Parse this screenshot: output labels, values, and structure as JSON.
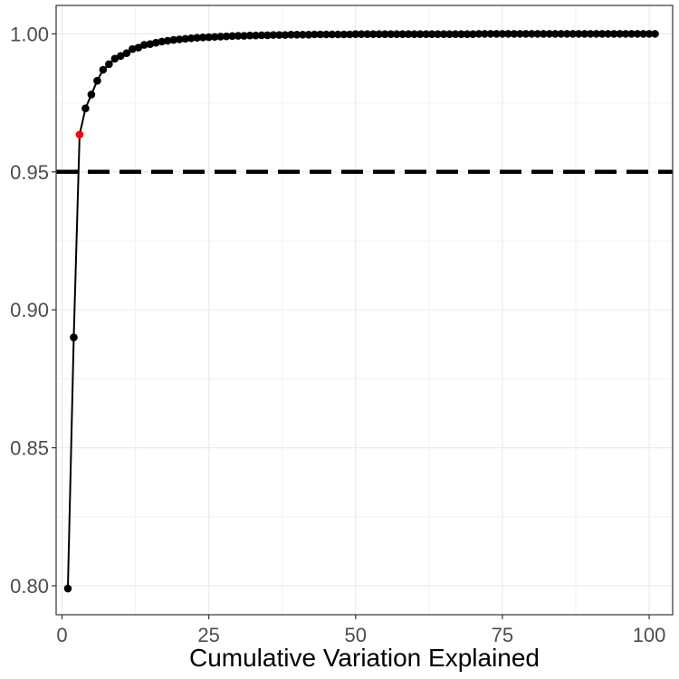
{
  "chart_data": {
    "type": "line",
    "title": "",
    "xlabel": "Cumulative Variation Explained",
    "ylabel": "",
    "xlim": [
      -1,
      104
    ],
    "ylim": [
      0.7895,
      1.0103
    ],
    "x_ticks": [
      0,
      25,
      50,
      75,
      100
    ],
    "x_tick_labels": [
      "0",
      "25",
      "50",
      "75",
      "100"
    ],
    "y_ticks": [
      0.8,
      0.85,
      0.9,
      0.95,
      1.0
    ],
    "y_tick_labels": [
      "0.80",
      "0.85",
      "0.90",
      "0.95",
      "1.00"
    ],
    "grid": true,
    "reference_line": {
      "y": 0.95,
      "style": "dashed",
      "color": "#000000"
    },
    "highlight": {
      "x": 3,
      "y": 0.9635,
      "color": "#ff0000"
    },
    "series": [
      {
        "color": "#000000",
        "x": [
          1,
          2,
          3,
          4,
          5,
          6,
          7,
          8,
          9,
          10,
          11,
          12,
          13,
          14,
          15,
          16,
          17,
          18,
          19,
          20,
          21,
          22,
          23,
          24,
          25,
          26,
          27,
          28,
          29,
          30,
          31,
          32,
          33,
          34,
          35,
          36,
          37,
          38,
          39,
          40,
          41,
          42,
          43,
          44,
          45,
          46,
          47,
          48,
          49,
          50,
          51,
          52,
          53,
          54,
          55,
          56,
          57,
          58,
          59,
          60,
          61,
          62,
          63,
          64,
          65,
          66,
          67,
          68,
          69,
          70,
          71,
          72,
          73,
          74,
          75,
          76,
          77,
          78,
          79,
          80,
          81,
          82,
          83,
          84,
          85,
          86,
          87,
          88,
          89,
          90,
          91,
          92,
          93,
          94,
          95,
          96,
          97,
          98,
          99,
          100,
          101
        ],
        "values": [
          0.799,
          0.89,
          0.9635,
          0.973,
          0.978,
          0.983,
          0.987,
          0.989,
          0.991,
          0.992,
          0.993,
          0.9945,
          0.995,
          0.996,
          0.9963,
          0.9968,
          0.9972,
          0.9975,
          0.9978,
          0.998,
          0.9982,
          0.9984,
          0.9986,
          0.9987,
          0.9988,
          0.9989,
          0.999,
          0.9991,
          0.9992,
          0.9993,
          0.9993,
          0.9994,
          0.9994,
          0.9995,
          0.9995,
          0.9996,
          0.9996,
          0.9996,
          0.9997,
          0.9997,
          0.9997,
          0.9997,
          0.9998,
          0.9998,
          0.9998,
          0.9998,
          0.9998,
          0.9998,
          0.9998,
          0.9999,
          0.9999,
          0.9999,
          0.9999,
          0.9999,
          0.9999,
          0.9999,
          0.9999,
          0.9999,
          0.9999,
          0.9999,
          0.9999,
          0.9999,
          0.9999,
          0.9999,
          0.9999,
          0.9999,
          0.9999,
          0.9999,
          0.9999,
          0.9999,
          1.0,
          1.0,
          1.0,
          1.0,
          1.0,
          1.0,
          1.0,
          1.0,
          1.0,
          1.0,
          1.0,
          1.0,
          1.0,
          1.0,
          1.0,
          1.0,
          1.0,
          1.0,
          1.0,
          1.0,
          1.0,
          1.0,
          1.0,
          1.0,
          1.0,
          1.0,
          1.0,
          1.0,
          1.0,
          1.0,
          1.0
        ]
      }
    ]
  }
}
